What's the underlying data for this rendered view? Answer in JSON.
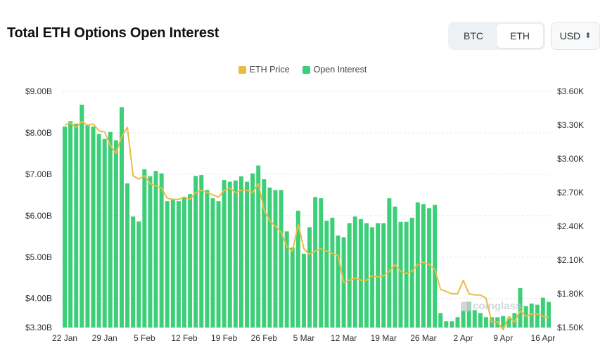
{
  "header": {
    "title": "Total ETH Options Open Interest"
  },
  "toggle": {
    "options": [
      "BTC",
      "ETH"
    ],
    "selected": "ETH"
  },
  "currency": {
    "label": "USD"
  },
  "watermark": {
    "text": "coinglass"
  },
  "colors": {
    "bars": "#3ccf78",
    "price_line": "#e8bd45",
    "grid": "#e4e7eb",
    "text": "#444444"
  },
  "chart_data": {
    "type": "bar",
    "title": "Total ETH Options Open Interest",
    "legend_position": "top",
    "grid": true,
    "x_tick_labels": [
      "22 Jan",
      "29 Jan",
      "5 Feb",
      "12 Feb",
      "19 Feb",
      "26 Feb",
      "5 Mar",
      "12 Mar",
      "19 Mar",
      "26 Mar",
      "2 Apr",
      "9 Apr",
      "16 Apr"
    ],
    "y_left": {
      "ticks": [
        "$3.30B",
        "$4.00B",
        "$5.00B",
        "$6.00B",
        "$7.00B",
        "$8.00B",
        "$9.00B"
      ],
      "range": [
        3.3,
        9.0
      ],
      "unit": "B USD"
    },
    "y_right": {
      "ticks": [
        "$1.50K",
        "$1.80K",
        "$2.10K",
        "$2.40K",
        "$2.70K",
        "$3.00K",
        "$3.30K",
        "$3.60K"
      ],
      "range": [
        1.5,
        3.6
      ],
      "unit": "K USD"
    },
    "dates": [
      "22 Jan",
      "23 Jan",
      "24 Jan",
      "25 Jan",
      "26 Jan",
      "27 Jan",
      "28 Jan",
      "29 Jan",
      "30 Jan",
      "31 Jan",
      "1 Feb",
      "2 Feb",
      "3 Feb",
      "4 Feb",
      "5 Feb",
      "6 Feb",
      "7 Feb",
      "8 Feb",
      "9 Feb",
      "10 Feb",
      "11 Feb",
      "12 Feb",
      "13 Feb",
      "14 Feb",
      "15 Feb",
      "16 Feb",
      "17 Feb",
      "18 Feb",
      "19 Feb",
      "20 Feb",
      "21 Feb",
      "22 Feb",
      "23 Feb",
      "24 Feb",
      "25 Feb",
      "26 Feb",
      "27 Feb",
      "28 Feb",
      "1 Mar",
      "2 Mar",
      "3 Mar",
      "4 Mar",
      "5 Mar",
      "6 Mar",
      "7 Mar",
      "8 Mar",
      "9 Mar",
      "10 Mar",
      "11 Mar",
      "12 Mar",
      "13 Mar",
      "14 Mar",
      "15 Mar",
      "16 Mar",
      "17 Mar",
      "18 Mar",
      "19 Mar",
      "20 Mar",
      "21 Mar",
      "22 Mar",
      "23 Mar",
      "24 Mar",
      "25 Mar",
      "26 Mar",
      "27 Mar",
      "28 Mar",
      "29 Mar",
      "30 Mar",
      "31 Mar",
      "1 Apr",
      "2 Apr",
      "3 Apr",
      "4 Apr",
      "5 Apr",
      "6 Apr",
      "7 Apr",
      "8 Apr",
      "9 Apr",
      "10 Apr",
      "11 Apr",
      "12 Apr",
      "13 Apr",
      "14 Apr",
      "15 Apr",
      "16 Apr",
      "17 Apr"
    ],
    "series": [
      {
        "name": "Open Interest",
        "type": "bar",
        "axis": "left",
        "values": [
          8.15,
          8.28,
          8.22,
          8.68,
          8.18,
          8.15,
          7.97,
          7.85,
          8.02,
          7.82,
          8.62,
          6.78,
          5.98,
          5.86,
          7.12,
          6.95,
          7.08,
          7.02,
          6.35,
          6.38,
          6.35,
          6.45,
          6.52,
          6.96,
          6.98,
          6.62,
          6.42,
          6.35,
          6.86,
          6.82,
          6.85,
          6.95,
          6.82,
          7.02,
          7.21,
          6.88,
          6.68,
          6.62,
          6.62,
          5.62,
          5.23,
          6.12,
          5.08,
          5.72,
          6.45,
          6.42,
          5.88,
          5.95,
          5.52,
          5.48,
          5.82,
          5.98,
          5.92,
          5.82,
          5.72,
          5.82,
          5.82,
          6.42,
          6.22,
          5.85,
          5.85,
          5.95,
          6.32,
          6.28,
          6.18,
          6.26,
          3.65,
          3.45,
          3.45,
          3.55,
          3.72,
          3.92,
          3.72,
          3.65,
          3.55,
          3.55,
          3.55,
          3.58,
          3.52,
          3.65,
          4.25,
          3.82,
          3.88,
          3.85,
          4.02,
          3.92
        ]
      },
      {
        "name": "ETH Price",
        "type": "line",
        "axis": "right",
        "values": [
          3.3,
          3.32,
          3.28,
          3.33,
          3.3,
          3.31,
          3.25,
          3.24,
          3.12,
          3.05,
          3.2,
          3.28,
          2.85,
          2.82,
          2.85,
          2.78,
          2.76,
          2.74,
          2.65,
          2.64,
          2.64,
          2.66,
          2.64,
          2.7,
          2.72,
          2.7,
          2.68,
          2.66,
          2.72,
          2.74,
          2.7,
          2.72,
          2.72,
          2.7,
          2.78,
          2.55,
          2.45,
          2.4,
          2.35,
          2.22,
          2.18,
          2.42,
          2.2,
          2.15,
          2.18,
          2.2,
          2.18,
          2.16,
          2.14,
          1.9,
          1.92,
          1.94,
          1.92,
          1.92,
          1.96,
          1.95,
          1.96,
          2.0,
          2.06,
          2.0,
          1.98,
          2.0,
          2.06,
          2.08,
          2.06,
          2.02,
          1.84,
          1.82,
          1.8,
          1.8,
          1.92,
          1.8,
          1.79,
          1.79,
          1.76,
          1.55,
          1.55,
          1.48,
          1.6,
          1.55,
          1.65,
          1.6,
          1.62,
          1.62,
          1.6,
          1.59
        ]
      }
    ]
  }
}
